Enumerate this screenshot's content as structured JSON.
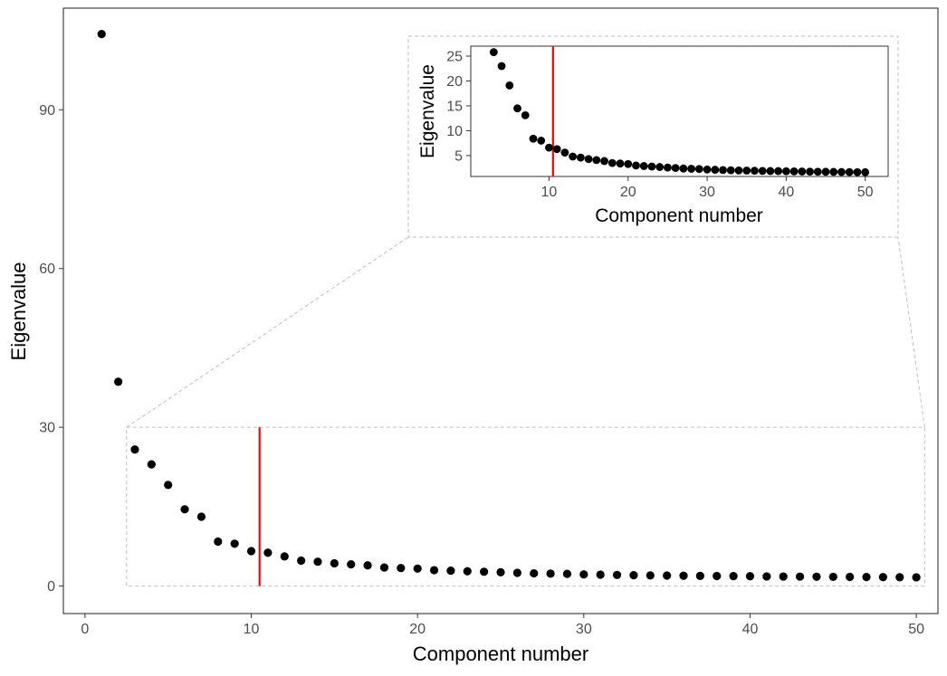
{
  "chart_data": [
    {
      "type": "scatter",
      "role": "main",
      "xlabel": "Component number",
      "ylabel": "Eigenvalue",
      "xlim": [
        -1.3,
        51.3
      ],
      "ylim": [
        -5.2,
        109.2
      ],
      "x_ticks": [
        0,
        10,
        20,
        30,
        40,
        50
      ],
      "x_tick_labels": [
        "0",
        "10",
        "20",
        "30",
        "40",
        "50"
      ],
      "y_ticks": [
        0,
        30,
        60,
        90
      ],
      "y_tick_labels": [
        "0",
        "30",
        "60",
        "90"
      ],
      "grid": false,
      "point_color": "#000000",
      "vline": {
        "x": 10.5,
        "y_range": [
          0,
          30
        ],
        "color": "#ff0000"
      },
      "zoom_box": {
        "x": [
          2.5,
          50.5
        ],
        "y": [
          0,
          30
        ],
        "color": "#bebebe"
      },
      "x": [
        1,
        2,
        3,
        4,
        5,
        6,
        7,
        8,
        9,
        10,
        11,
        12,
        13,
        14,
        15,
        16,
        17,
        18,
        19,
        20,
        21,
        22,
        23,
        24,
        25,
        26,
        27,
        28,
        29,
        30,
        31,
        32,
        33,
        34,
        35,
        36,
        37,
        38,
        39,
        40,
        41,
        42,
        43,
        44,
        45,
        46,
        47,
        48,
        49,
        50
      ],
      "values": [
        104.3,
        38.6,
        25.8,
        23.0,
        19.1,
        14.5,
        13.1,
        8.4,
        8.0,
        6.6,
        6.3,
        5.6,
        4.8,
        4.6,
        4.3,
        4.1,
        3.9,
        3.5,
        3.4,
        3.3,
        3.0,
        2.9,
        2.8,
        2.7,
        2.6,
        2.5,
        2.4,
        2.35,
        2.3,
        2.2,
        2.15,
        2.1,
        2.05,
        2.0,
        1.98,
        1.95,
        1.92,
        1.9,
        1.88,
        1.85,
        1.82,
        1.8,
        1.78,
        1.76,
        1.74,
        1.72,
        1.7,
        1.68,
        1.66,
        1.65
      ]
    },
    {
      "type": "scatter",
      "role": "inset",
      "xlabel": "Component number",
      "ylabel": "Eigenvalue",
      "xlim": [
        0.1,
        52.9
      ],
      "ylim": [
        0.8,
        27.0
      ],
      "x_ticks": [
        10,
        20,
        30,
        40,
        50
      ],
      "x_tick_labels": [
        "10",
        "20",
        "30",
        "40",
        "50"
      ],
      "y_ticks": [
        5,
        10,
        15,
        20,
        25
      ],
      "y_tick_labels": [
        "5",
        "10",
        "15",
        "20",
        "25"
      ],
      "grid": false,
      "point_color": "#000000",
      "vline": {
        "x": 10.5,
        "color": "#ff0000"
      },
      "x": [
        3,
        4,
        5,
        6,
        7,
        8,
        9,
        10,
        11,
        12,
        13,
        14,
        15,
        16,
        17,
        18,
        19,
        20,
        21,
        22,
        23,
        24,
        25,
        26,
        27,
        28,
        29,
        30,
        31,
        32,
        33,
        34,
        35,
        36,
        37,
        38,
        39,
        40,
        41,
        42,
        43,
        44,
        45,
        46,
        47,
        48,
        49,
        50
      ],
      "values": [
        25.8,
        23.0,
        19.1,
        14.5,
        13.1,
        8.4,
        8.0,
        6.6,
        6.3,
        5.6,
        4.8,
        4.6,
        4.3,
        4.1,
        3.9,
        3.5,
        3.4,
        3.3,
        3.0,
        2.9,
        2.8,
        2.7,
        2.6,
        2.5,
        2.4,
        2.35,
        2.3,
        2.2,
        2.15,
        2.1,
        2.05,
        2.0,
        1.98,
        1.95,
        1.92,
        1.9,
        1.88,
        1.85,
        1.82,
        1.8,
        1.78,
        1.76,
        1.74,
        1.72,
        1.7,
        1.68,
        1.66,
        1.65
      ]
    }
  ]
}
